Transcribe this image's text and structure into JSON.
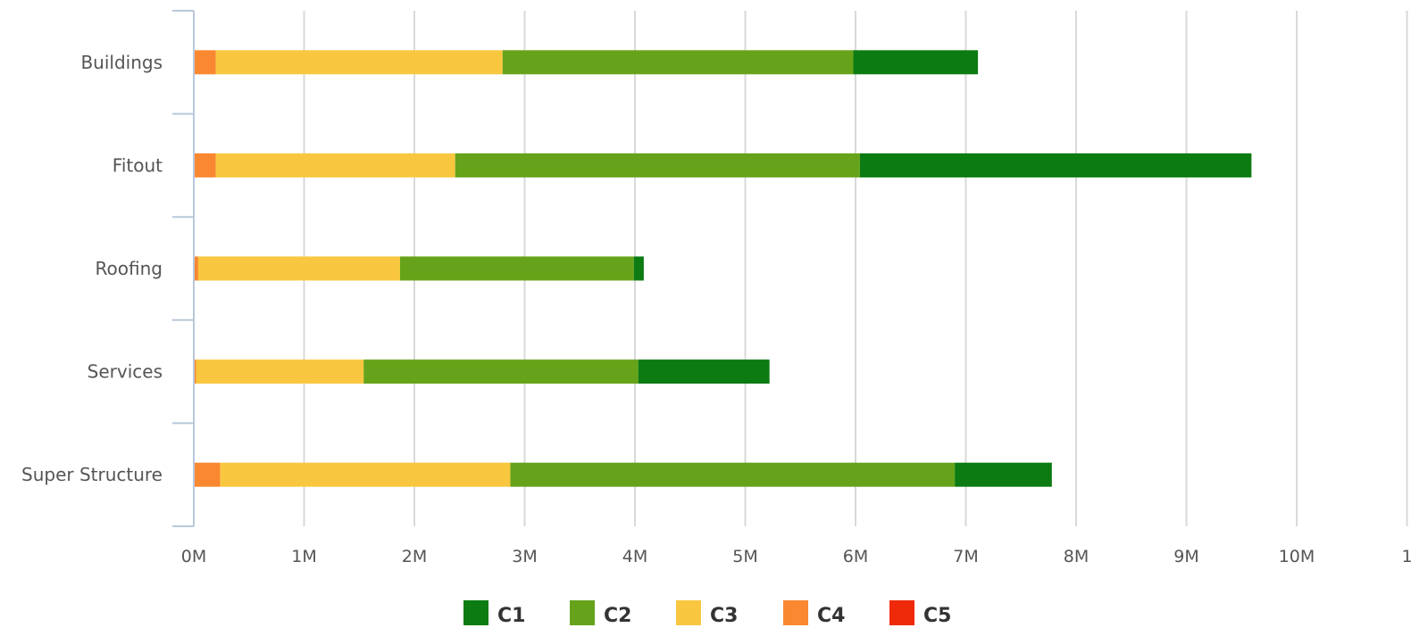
{
  "chart_data": {
    "type": "bar",
    "orientation": "horizontal",
    "stacked": true,
    "categories": [
      "Buildings",
      "Fitout",
      "Roofing",
      "Services",
      "Super Structure"
    ],
    "series": [
      {
        "name": "C5",
        "color": "#ef2a0a",
        "values": [
          0,
          0,
          0,
          0,
          0
        ]
      },
      {
        "name": "C4",
        "color": "#f98830",
        "values": [
          0.2,
          0.2,
          0.04,
          0.02,
          0.24
        ]
      },
      {
        "name": "C3",
        "color": "#f9c73f",
        "values": [
          2.6,
          2.17,
          1.83,
          1.52,
          2.63
        ]
      },
      {
        "name": "C2",
        "color": "#66a31a",
        "values": [
          3.18,
          3.67,
          2.12,
          2.49,
          4.03
        ]
      },
      {
        "name": "C1",
        "color": "#0b7b12",
        "values": [
          1.13,
          3.55,
          0.09,
          1.19,
          0.88
        ]
      }
    ],
    "value_unit": "M",
    "xlim": [
      0,
      10.5
    ],
    "x_ticks": [
      "0M",
      "1M",
      "2M",
      "3M",
      "4M",
      "5M",
      "6M",
      "7M",
      "8M",
      "9M",
      "10M",
      "1"
    ],
    "legend": [
      "C1",
      "C2",
      "C3",
      "C4",
      "C5"
    ],
    "legend_position": "bottom",
    "grid": true,
    "title": "",
    "xlabel": "",
    "ylabel": ""
  }
}
